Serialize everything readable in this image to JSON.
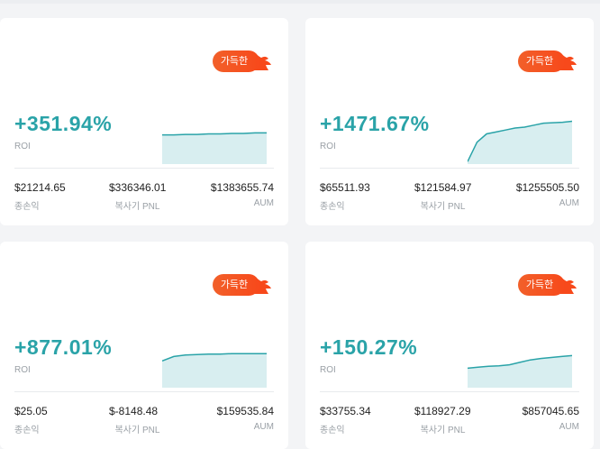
{
  "colors": {
    "accent": "#2aa3a8",
    "badge": "#f4522a"
  },
  "cards": [
    {
      "badge": "가득한",
      "roi": "+351.94%",
      "roi_label": "ROI",
      "total_profit": "$21214.65",
      "total_profit_label": "종손익",
      "copier_pnl": "$336346.01",
      "copier_pnl_label": "복사기 PNL",
      "aum": "$1383655.74",
      "aum_label": "AUM",
      "trend": [
        0.6,
        0.6,
        0.61,
        0.61,
        0.62,
        0.62,
        0.63,
        0.63,
        0.64,
        0.64
      ]
    },
    {
      "badge": "가득한",
      "roi": "+1471.67%",
      "roi_label": "ROI",
      "total_profit": "$65511.93",
      "total_profit_label": "종손익",
      "copier_pnl": "$121584.97",
      "copier_pnl_label": "복사기 PNL",
      "aum": "$1255505.50",
      "aum_label": "AUM",
      "trend": [
        0.05,
        0.45,
        0.62,
        0.66,
        0.7,
        0.74,
        0.76,
        0.8,
        0.84,
        0.85,
        0.86,
        0.88
      ]
    },
    {
      "badge": "가득한",
      "roi": "+877.01%",
      "roi_label": "ROI",
      "total_profit": "$25.05",
      "total_profit_label": "종손익",
      "copier_pnl": "$-8148.48",
      "copier_pnl_label": "복사기 PNL",
      "aum": "$159535.84",
      "aum_label": "AUM",
      "trend": [
        0.55,
        0.64,
        0.67,
        0.68,
        0.69,
        0.69,
        0.7,
        0.7,
        0.7,
        0.7
      ]
    },
    {
      "badge": "가득한",
      "roi": "+150.27%",
      "roi_label": "ROI",
      "total_profit": "$33755.34",
      "total_profit_label": "종손익",
      "copier_pnl": "$118927.29",
      "copier_pnl_label": "복사기 PNL",
      "aum": "$857045.65",
      "aum_label": "AUM",
      "trend": [
        0.4,
        0.42,
        0.44,
        0.45,
        0.47,
        0.52,
        0.57,
        0.6,
        0.62,
        0.64,
        0.66
      ]
    }
  ]
}
